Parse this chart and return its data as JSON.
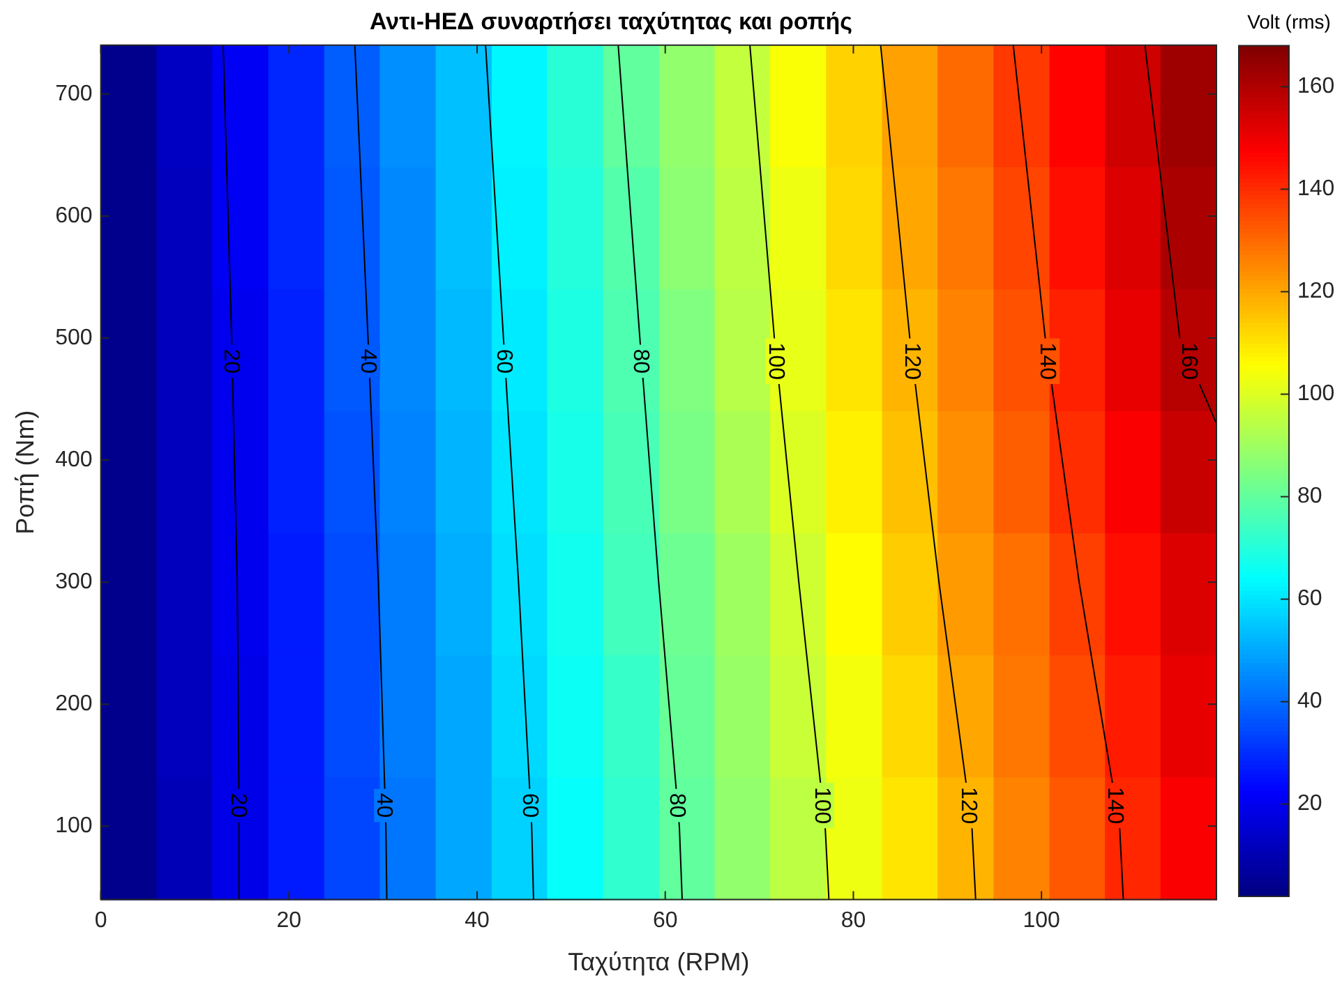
{
  "chart_data": {
    "type": "heatmap",
    "title": "Αντι-ΗΕΔ συναρτήσει ταχύτητας και ροπής",
    "xlabel": "Ταχύτητα (RPM)",
    "ylabel": "Ροπή (Nm)",
    "clabel": "Volt (rms)",
    "x": [
      2.97,
      8.9,
      14.8,
      20.8,
      26.7,
      32.6,
      38.6,
      44.5,
      50.4,
      56.4,
      62.3,
      68.2,
      74.1,
      80.1,
      86.0,
      91.9,
      97.9,
      103.8,
      109.7,
      115.6
    ],
    "y": [
      690,
      590,
      490,
      390,
      290,
      190,
      90
    ],
    "cells": [
      [
        4,
        13,
        21,
        29,
        38,
        46,
        54,
        63,
        71,
        80,
        88,
        96,
        105,
        113,
        121,
        130,
        138,
        147,
        155,
        163
      ],
      [
        4,
        12,
        21,
        29,
        37,
        45,
        54,
        62,
        70,
        78,
        87,
        95,
        103,
        112,
        120,
        128,
        136,
        145,
        153,
        161
      ],
      [
        4,
        12,
        20,
        28,
        37,
        45,
        53,
        61,
        69,
        77,
        85,
        94,
        102,
        110,
        118,
        126,
        134,
        142,
        151,
        159
      ],
      [
        4,
        12,
        20,
        28,
        36,
        44,
        52,
        60,
        68,
        76,
        84,
        92,
        100,
        108,
        116,
        124,
        132,
        140,
        148,
        156
      ],
      [
        4,
        12,
        20,
        27,
        35,
        43,
        51,
        59,
        67,
        75,
        82,
        90,
        98,
        106,
        114,
        122,
        129,
        137,
        145,
        153
      ],
      [
        4,
        12,
        19,
        27,
        35,
        43,
        50,
        58,
        66,
        73,
        81,
        89,
        97,
        104,
        112,
        120,
        128,
        135,
        143,
        151
      ],
      [
        4,
        11,
        19,
        27,
        34,
        42,
        50,
        57,
        65,
        72,
        80,
        88,
        95,
        103,
        110,
        118,
        126,
        133,
        141,
        148
      ]
    ],
    "xlim": [
      0,
      118.6
    ],
    "xticks": [
      0,
      20,
      40,
      60,
      80,
      100
    ],
    "ylim": [
      40,
      740
    ],
    "yticks": [
      100,
      200,
      300,
      400,
      500,
      600,
      700
    ],
    "clim": [
      2,
      168
    ],
    "cticks": [
      20,
      40,
      60,
      80,
      100,
      120,
      140,
      160
    ],
    "legend": false,
    "marker": "none",
    "series": [
      {
        "type": "line",
        "name": "20",
        "color": "#000000",
        "x": [
          13.0,
          13.9,
          14.5,
          14.7,
          14.7
        ],
        "values": [
          740,
          500,
          300,
          100,
          40
        ]
      },
      {
        "type": "line",
        "name": "40",
        "color": "#000000",
        "x": [
          27.0,
          28.4,
          29.5,
          30.3,
          30.4
        ],
        "values": [
          740,
          500,
          300,
          100,
          40
        ]
      },
      {
        "type": "line",
        "name": "60",
        "color": "#000000",
        "x": [
          40.9,
          42.8,
          44.4,
          45.8,
          46.0
        ],
        "values": [
          740,
          500,
          300,
          100,
          40
        ]
      },
      {
        "type": "line",
        "name": "80",
        "color": "#000000",
        "x": [
          55.0,
          57.3,
          59.3,
          61.5,
          61.8
        ],
        "values": [
          740,
          500,
          300,
          100,
          40
        ]
      },
      {
        "type": "line",
        "name": "100",
        "color": "#000000",
        "x": [
          69.0,
          71.6,
          74.2,
          77.0,
          77.4
        ],
        "values": [
          740,
          500,
          300,
          100,
          40
        ]
      },
      {
        "type": "line",
        "name": "120",
        "color": "#000000",
        "x": [
          82.9,
          86.0,
          89.1,
          92.6,
          93.0
        ],
        "values": [
          740,
          500,
          300,
          100,
          40
        ]
      },
      {
        "type": "line",
        "name": "140",
        "color": "#000000",
        "x": [
          97.0,
          100.4,
          104.0,
          108.3,
          108.7
        ],
        "values": [
          740,
          500,
          300,
          100,
          40
        ]
      },
      {
        "type": "line",
        "name": "160",
        "color": "#000000",
        "x": [
          111.0,
          114.7,
          118.6
        ],
        "values": [
          740,
          500,
          430
        ]
      }
    ]
  }
}
